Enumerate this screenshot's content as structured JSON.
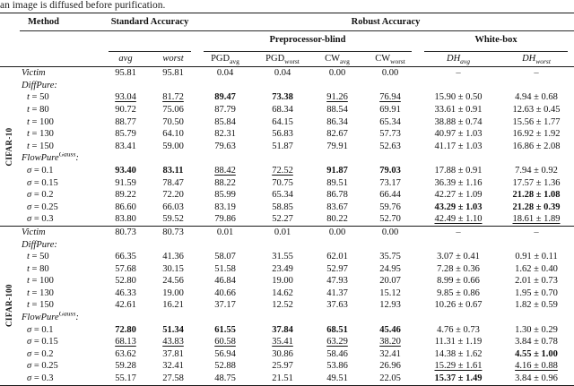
{
  "caption": "an image is diffused before purification.",
  "table": {
    "header": {
      "method": "Method",
      "standard": "Standard Accuracy",
      "robust": "Robust Accuracy",
      "blind": "Preprocessor-blind",
      "whitebox": "White-box",
      "cols": [
        {
          "base": "avg",
          "sub": ""
        },
        {
          "base": "worst",
          "sub": ""
        },
        {
          "base": "PGD",
          "sub": "avg"
        },
        {
          "base": "PGD",
          "sub": "worst"
        },
        {
          "base": "CW",
          "sub": "avg"
        },
        {
          "base": "CW",
          "sub": "worst"
        },
        {
          "base": "DH",
          "sub": "avg"
        },
        {
          "base": "DH",
          "sub": "worst"
        }
      ]
    },
    "sections": [
      {
        "dataset": "CIFAR-10",
        "rows": [
          {
            "kind": "method",
            "name": "Victim",
            "cells": [
              "95.81",
              "95.81",
              "0.04",
              "0.04",
              "0.00",
              "0.00",
              "–",
              "–"
            ],
            "styles": [
              "",
              "",
              "",
              "",
              "",
              "",
              "",
              ""
            ]
          },
          {
            "kind": "group",
            "name": "DiffPure",
            "sup": "",
            "suffix": ":"
          },
          {
            "kind": "param",
            "var": "t",
            "eq": "= 50",
            "cells": [
              "93.04",
              "81.72",
              "89.47",
              "73.38",
              "91.26",
              "76.94",
              "15.90 ± 0.50",
              "4.94 ± 0.68"
            ],
            "styles": [
              "u",
              "u",
              "b",
              "b",
              "u",
              "u",
              "",
              ""
            ]
          },
          {
            "kind": "param",
            "var": "t",
            "eq": "= 80",
            "cells": [
              "90.72",
              "75.06",
              "87.79",
              "68.34",
              "88.54",
              "69.91",
              "33.61 ± 0.91",
              "12.63 ± 0.45"
            ],
            "styles": [
              "",
              "",
              "",
              "",
              "",
              "",
              "",
              ""
            ]
          },
          {
            "kind": "param",
            "var": "t",
            "eq": "= 100",
            "cells": [
              "88.77",
              "70.50",
              "85.84",
              "64.15",
              "86.34",
              "65.34",
              "38.88 ± 0.74",
              "15.56 ± 1.77"
            ],
            "styles": [
              "",
              "",
              "",
              "",
              "",
              "",
              "",
              ""
            ]
          },
          {
            "kind": "param",
            "var": "t",
            "eq": "= 130",
            "cells": [
              "85.79",
              "64.10",
              "82.31",
              "56.83",
              "82.67",
              "57.73",
              "40.97 ± 1.03",
              "16.92 ± 1.92"
            ],
            "styles": [
              "",
              "",
              "",
              "",
              "",
              "",
              "",
              ""
            ]
          },
          {
            "kind": "param",
            "var": "t",
            "eq": "= 150",
            "cells": [
              "83.41",
              "59.00",
              "79.63",
              "51.87",
              "79.91",
              "52.63",
              "41.17 ± 1.03",
              "16.86 ± 2.08"
            ],
            "styles": [
              "",
              "",
              "",
              "",
              "",
              "",
              "",
              ""
            ]
          },
          {
            "kind": "group",
            "name": "FlowPure",
            "sup": "Gauss",
            "suffix": ":"
          },
          {
            "kind": "param",
            "var": "σ",
            "eq": "= 0.1",
            "cells": [
              "93.40",
              "83.11",
              "88.42",
              "72.52",
              "91.87",
              "79.03",
              "17.88 ± 0.91",
              "7.94 ± 0.92"
            ],
            "styles": [
              "b",
              "b",
              "u",
              "u",
              "b",
              "b",
              "",
              ""
            ]
          },
          {
            "kind": "param",
            "var": "σ",
            "eq": "= 0.15",
            "cells": [
              "91.59",
              "78.47",
              "88.22",
              "70.75",
              "89.51",
              "73.17",
              "36.39 ± 1.16",
              "17.57 ± 1.36"
            ],
            "styles": [
              "",
              "",
              "",
              "",
              "",
              "",
              "",
              ""
            ]
          },
          {
            "kind": "param",
            "var": "σ",
            "eq": "= 0.2",
            "cells": [
              "89.22",
              "72.20",
              "85.99",
              "65.34",
              "86.78",
              "66.44",
              "42.27 ± 1.09",
              "21.28 ± 1.08"
            ],
            "styles": [
              "",
              "",
              "",
              "",
              "",
              "",
              "",
              "b"
            ]
          },
          {
            "kind": "param",
            "var": "σ",
            "eq": "= 0.25",
            "cells": [
              "86.60",
              "66.03",
              "83.19",
              "58.85",
              "83.67",
              "59.76",
              "43.29 ± 1.03",
              "21.28 ± 0.39"
            ],
            "styles": [
              "",
              "",
              "",
              "",
              "",
              "",
              "b",
              "b"
            ]
          },
          {
            "kind": "param",
            "var": "σ",
            "eq": "= 0.3",
            "cells": [
              "83.80",
              "59.52",
              "79.86",
              "52.27",
              "80.22",
              "52.70",
              "42.49 ± 1.10",
              "18.61 ± 1.89"
            ],
            "styles": [
              "",
              "",
              "",
              "",
              "",
              "",
              "u",
              "u"
            ]
          }
        ]
      },
      {
        "dataset": "CIFAR-100",
        "rows": [
          {
            "kind": "method",
            "name": "Victim",
            "cells": [
              "80.73",
              "80.73",
              "0.01",
              "0.01",
              "0.00",
              "0.00",
              "–",
              "–"
            ],
            "styles": [
              "",
              "",
              "",
              "",
              "",
              "",
              "",
              ""
            ]
          },
          {
            "kind": "group",
            "name": "DiffPure",
            "sup": "",
            "suffix": ":"
          },
          {
            "kind": "param",
            "var": "t",
            "eq": "= 50",
            "cells": [
              "66.35",
              "41.36",
              "58.07",
              "31.55",
              "62.01",
              "35.75",
              "3.07 ± 0.41",
              "0.91 ± 0.11"
            ],
            "styles": [
              "",
              "",
              "",
              "",
              "",
              "",
              "",
              ""
            ]
          },
          {
            "kind": "param",
            "var": "t",
            "eq": "= 80",
            "cells": [
              "57.68",
              "30.15",
              "51.58",
              "23.49",
              "52.97",
              "24.95",
              "7.28 ± 0.36",
              "1.62 ± 0.40"
            ],
            "styles": [
              "",
              "",
              "",
              "",
              "",
              "",
              "",
              ""
            ]
          },
          {
            "kind": "param",
            "var": "t",
            "eq": "= 100",
            "cells": [
              "52.80",
              "24.56",
              "46.84",
              "19.00",
              "47.93",
              "20.07",
              "8.99 ± 0.66",
              "2.01 ± 0.73"
            ],
            "styles": [
              "",
              "",
              "",
              "",
              "",
              "",
              "",
              ""
            ]
          },
          {
            "kind": "param",
            "var": "t",
            "eq": "= 130",
            "cells": [
              "46.33",
              "19.00",
              "40.66",
              "14.62",
              "41.37",
              "15.12",
              "9.85 ± 0.86",
              "1.95 ± 0.70"
            ],
            "styles": [
              "",
              "",
              "",
              "",
              "",
              "",
              "",
              ""
            ]
          },
          {
            "kind": "param",
            "var": "t",
            "eq": "= 150",
            "cells": [
              "42.61",
              "16.21",
              "37.17",
              "12.52",
              "37.63",
              "12.93",
              "10.26 ± 0.67",
              "1.82 ± 0.59"
            ],
            "styles": [
              "",
              "",
              "",
              "",
              "",
              "",
              "",
              ""
            ]
          },
          {
            "kind": "group",
            "name": "FlowPure",
            "sup": "Gauss",
            "suffix": ":"
          },
          {
            "kind": "param",
            "var": "σ",
            "eq": "= 0.1",
            "cells": [
              "72.80",
              "51.34",
              "61.55",
              "37.84",
              "68.51",
              "45.46",
              "4.76 ± 0.73",
              "1.30 ± 0.29"
            ],
            "styles": [
              "b",
              "b",
              "b",
              "b",
              "b",
              "b",
              "",
              ""
            ]
          },
          {
            "kind": "param",
            "var": "σ",
            "eq": "= 0.15",
            "cells": [
              "68.13",
              "43.83",
              "60.58",
              "35.41",
              "63.29",
              "38.20",
              "11.31 ± 1.19",
              "3.84 ± 0.78"
            ],
            "styles": [
              "u",
              "u",
              "u",
              "u",
              "u",
              "u",
              "",
              ""
            ]
          },
          {
            "kind": "param",
            "var": "σ",
            "eq": "= 0.2",
            "cells": [
              "63.62",
              "37.81",
              "56.94",
              "30.86",
              "58.46",
              "32.41",
              "14.38 ± 1.62",
              "4.55 ± 1.00"
            ],
            "styles": [
              "",
              "",
              "",
              "",
              "",
              "",
              "",
              "b"
            ]
          },
          {
            "kind": "param",
            "var": "σ",
            "eq": "= 0.25",
            "cells": [
              "59.28",
              "32.41",
              "52.88",
              "25.97",
              "53.86",
              "26.96",
              "15.29 ± 1.61",
              "4.16 ± 0.88"
            ],
            "styles": [
              "",
              "",
              "",
              "",
              "",
              "",
              "u",
              "u"
            ]
          },
          {
            "kind": "param",
            "var": "σ",
            "eq": "= 0.3",
            "cells": [
              "55.17",
              "27.58",
              "48.75",
              "21.51",
              "49.51",
              "22.05",
              "15.37 ± 1.49",
              "3.84 ± 0.96"
            ],
            "styles": [
              "",
              "",
              "",
              "",
              "",
              "",
              "b",
              ""
            ]
          }
        ]
      }
    ]
  }
}
